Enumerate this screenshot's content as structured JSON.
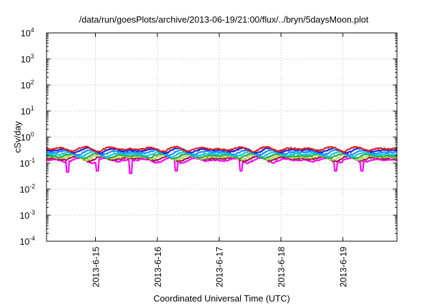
{
  "chart_data": {
    "type": "line",
    "title": "/data/run/goesPlots/archive/2013-06-19/21:00/flux/../bryn/5daysMoon.plot",
    "xlabel": "Coordinated Universal Time (UTC)",
    "ylabel": "cSv/day",
    "yscale": "log",
    "ylim": [
      0.0001,
      10000
    ],
    "xlim": [
      "2013-06-14 05:00",
      "2013-06-19 21:00"
    ],
    "grid": true,
    "x_ticks": [
      "2013-6-15",
      "2013-6-16",
      "2013-6-17",
      "2013-6-18",
      "2013-6-19"
    ],
    "y_ticks": [
      {
        "base": "10",
        "exp": "-4"
      },
      {
        "base": "10",
        "exp": "-3"
      },
      {
        "base": "10",
        "exp": "-2"
      },
      {
        "base": "10",
        "exp": "-1"
      },
      {
        "base": "10",
        "exp": "0"
      },
      {
        "base": "10",
        "exp": "1"
      },
      {
        "base": "10",
        "exp": "2"
      },
      {
        "base": "10",
        "exp": "3"
      },
      {
        "base": "10",
        "exp": "4"
      }
    ],
    "series": [
      {
        "color": "#ff00ff",
        "base": 0.13,
        "x": [
          "2013-06-14 05:00",
          "2013-06-19 21:00"
        ],
        "y": [
          0.13,
          0.13
        ],
        "dips": [
          0.045,
          0.05,
          0.04,
          0.05,
          0.05,
          0.05,
          0.05
        ]
      },
      {
        "color": "#9a1b3f",
        "base": 0.15,
        "x": [
          "2013-06-14 05:00",
          "2013-06-19 21:00"
        ],
        "y": [
          0.15,
          0.15
        ]
      },
      {
        "color": "#b0e050",
        "base": 0.17,
        "x": [
          "2013-06-14 05:00",
          "2013-06-19 21:00"
        ],
        "y": [
          0.17,
          0.17
        ]
      },
      {
        "color": "#30a050",
        "base": 0.19,
        "x": [
          "2013-06-14 05:00",
          "2013-06-19 21:00"
        ],
        "y": [
          0.19,
          0.19
        ]
      },
      {
        "color": "#00d0d0",
        "base": 0.22,
        "x": [
          "2013-06-14 05:00",
          "2013-06-19 21:00"
        ],
        "y": [
          0.22,
          0.22
        ]
      },
      {
        "color": "#1e8cff",
        "base": 0.26,
        "x": [
          "2013-06-14 05:00",
          "2013-06-19 21:00"
        ],
        "y": [
          0.26,
          0.26
        ]
      },
      {
        "color": "#2020e0",
        "base": 0.31,
        "x": [
          "2013-06-14 05:00",
          "2013-06-19 21:00"
        ],
        "y": [
          0.31,
          0.31
        ]
      },
      {
        "color": "#e02020",
        "base": 0.35,
        "x": [
          "2013-06-14 05:00",
          "2013-06-19 21:00"
        ],
        "y": [
          0.35,
          0.35
        ]
      }
    ]
  }
}
